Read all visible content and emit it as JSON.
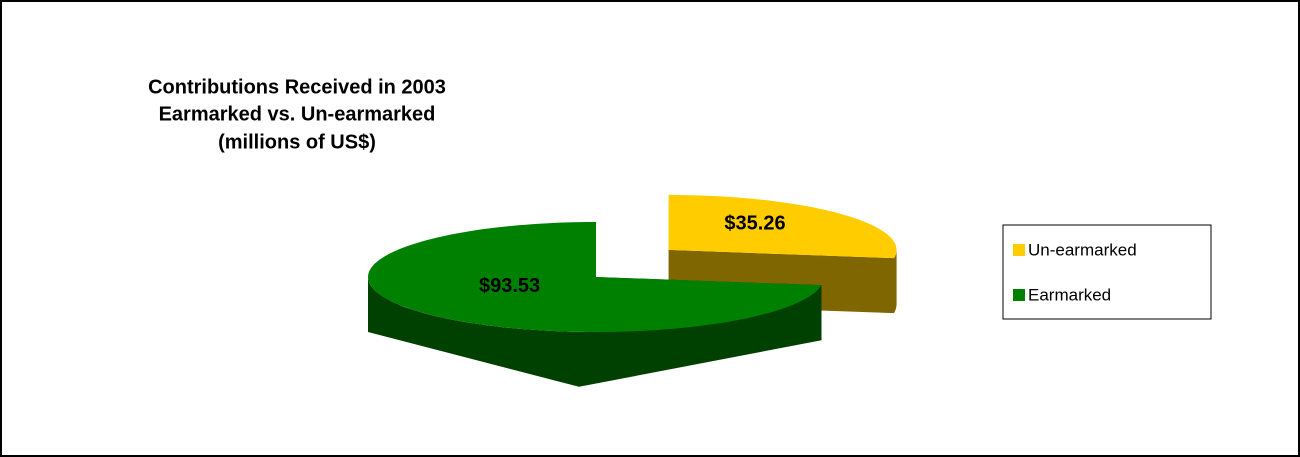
{
  "chart_data": {
    "type": "pie3d",
    "title": [
      "Contributions Received in 2003",
      "Earmarked vs. Un-earmarked",
      "(millions of US$)"
    ],
    "categories": [
      "Un-earmarked",
      "Earmarked"
    ],
    "values": [
      35.26,
      93.53
    ],
    "value_labels": [
      "$35.26",
      "$93.53"
    ],
    "colors": [
      "#ffcc00",
      "#008000"
    ],
    "legend": "right"
  }
}
